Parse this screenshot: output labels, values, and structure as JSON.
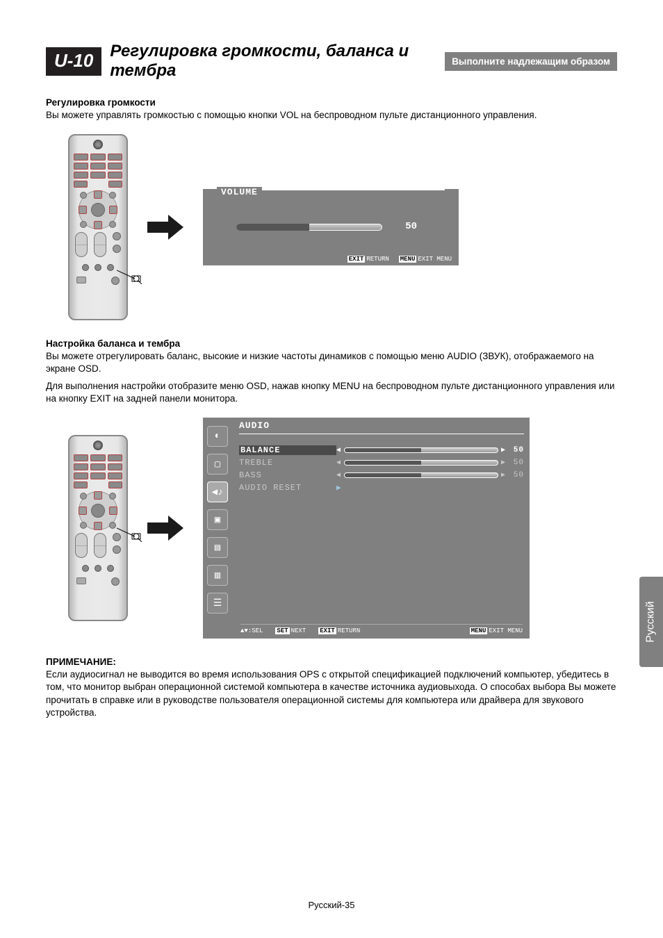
{
  "header": {
    "section_num": "U-10",
    "title": "Регулировка громкости, баланса и тембра",
    "note": "Выполните надлежащим образом"
  },
  "section1": {
    "heading": "Регулировка громкости",
    "text": "Вы можете управлять громкостью с помощью кнопки VOL на беспроводном пульте дистанционного управления."
  },
  "volume_osd": {
    "title": "VOLUME",
    "value": "50",
    "slider_percent": 50,
    "exit_key": "EXIT",
    "exit_label": "RETURN",
    "menu_key": "MENU",
    "menu_label": "EXIT MENU"
  },
  "section2": {
    "heading": "Настройка баланса и тембра",
    "text1": "Вы можете отрегулировать баланс, высокие и низкие частоты динамиков с помощью меню AUDIO (ЗВУК), отображаемого на экране OSD.",
    "text2": "Для выполнения настройки отобразите меню OSD, нажав кнопку MENU на беспроводном пульте дистанционного управления или на кнопку EXIT на задней панели монитора."
  },
  "audio_osd": {
    "title": "AUDIO",
    "rows": [
      {
        "label": "BALANCE",
        "value": "50",
        "type": "slider",
        "selected": true
      },
      {
        "label": "TREBLE",
        "value": "50",
        "type": "slider",
        "selected": false
      },
      {
        "label": "BASS",
        "value": "50",
        "type": "slider",
        "selected": false
      },
      {
        "label": "AUDIO RESET",
        "type": "arrow",
        "selected": false
      }
    ],
    "hints": {
      "sel_icon": "▲▼",
      "sel_label": "SEL",
      "set_key": "SET",
      "set_label": "NEXT",
      "exit_key": "EXIT",
      "exit_label": "RETURN",
      "menu_key": "MENU",
      "menu_label": "EXIT MENU"
    }
  },
  "note": {
    "heading": "ПРИМЕЧАНИЕ:",
    "text": "Если аудиосигнал не выводится во время использования OPS с открытой спецификацией подключений компьютер, убедитесь в том, что монитор выбран операционной системой компьютера в качестве источника аудиовыхода. О способах выбора Вы можете прочитать в справке или в руководстве пользователя операционной системы для компьютера или драйвера для звукового устройства."
  },
  "side_tab": "Русский",
  "footer": "Русский-35",
  "colors": {
    "osd_bg": "#808080",
    "dark_block": "#231f20"
  }
}
